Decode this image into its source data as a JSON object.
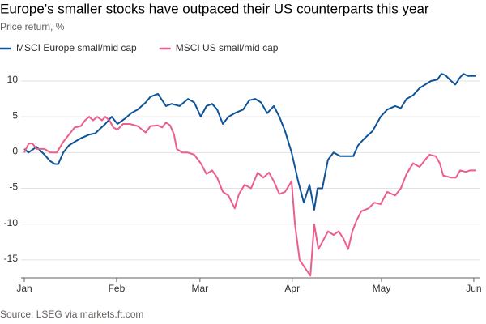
{
  "chart_data": {
    "type": "line",
    "title": "Europe's smaller stocks have outpaced their US counterparts this year",
    "subtitle": "Price return, %",
    "source": "Source: LSEG via markets.ft.com",
    "xlim": [
      0,
      152
    ],
    "xticks": [
      {
        "value": 0,
        "label": "Jan"
      },
      {
        "value": 31,
        "label": "Feb"
      },
      {
        "value": 59,
        "label": "Mar"
      },
      {
        "value": 90,
        "label": "Apr"
      },
      {
        "value": 120,
        "label": "May"
      },
      {
        "value": 151,
        "label": "Jun"
      }
    ],
    "ylim": [
      -17.5,
      11.5
    ],
    "yticks": [
      -15,
      -10,
      -5,
      0,
      5,
      10
    ],
    "grid": true,
    "legend": "top-left",
    "series": [
      {
        "name": "MSCI Europe small/mid cap",
        "color": "#0f5499",
        "x": [
          0,
          1.4,
          4.1,
          6.8,
          8.7,
          10.3,
          11.4,
          13.1,
          15,
          16.9,
          19,
          21.8,
          23.9,
          25.9,
          27.2,
          29.4,
          31.3,
          34,
          35.9,
          38.1,
          40.8,
          42.4,
          44.9,
          47.6,
          49.5,
          52.2,
          55,
          57.1,
          59.3,
          61.2,
          63.1,
          64.8,
          66.7,
          68.6,
          70.7,
          73.5,
          75.6,
          77.6,
          79.5,
          81.6,
          83.8,
          85.7,
          87.6,
          89.8,
          92,
          93.9,
          95.8,
          97.4,
          98.5,
          100.1,
          102,
          103.9,
          106.1,
          108.8,
          110.5,
          112.1,
          114.3,
          117,
          119.7,
          121.9,
          124.6,
          126.5,
          128.4,
          130.6,
          132.8,
          134.7,
          136.6,
          138.8,
          140.1,
          141.5,
          143.4,
          144.8,
          146.4,
          147.5,
          149.1,
          151.8
        ],
        "values": [
          0.5,
          0,
          0.8,
          -0.3,
          -1.2,
          -1.6,
          -1.6,
          0,
          1,
          1.5,
          2,
          2.5,
          2.7,
          3.5,
          4,
          5,
          4,
          4.8,
          5.5,
          6,
          7,
          7.8,
          8.2,
          6.5,
          6.8,
          6.5,
          7.5,
          7,
          5,
          6.5,
          6.8,
          6,
          4,
          5,
          5.5,
          6,
          7.3,
          7.5,
          7,
          5.5,
          6.5,
          5,
          3,
          0,
          -4,
          -7,
          -4.5,
          -8,
          -5,
          -5,
          -1,
          0,
          -0.5,
          -0.5,
          -0.5,
          1,
          2,
          3,
          5,
          6,
          6.5,
          6.2,
          7.5,
          8,
          9,
          9.5,
          10,
          10.2,
          11,
          10.8,
          10,
          9.5,
          10.5,
          11,
          10.7,
          10.7
        ]
      },
      {
        "name": "MSCI US small/mid cap",
        "color": "#eb5e8d",
        "x": [
          0,
          1.4,
          2.7,
          4.1,
          6.8,
          8.7,
          10.9,
          13.1,
          15,
          16.9,
          19,
          20.4,
          21.8,
          23.1,
          24.5,
          26.1,
          27.2,
          28.6,
          29.9,
          31.3,
          33.2,
          35.4,
          38.1,
          40.8,
          42.4,
          44.9,
          46.3,
          47.6,
          49,
          50.3,
          51.2,
          53.1,
          55,
          57.1,
          59.3,
          61.2,
          63.1,
          64.8,
          66.7,
          68.6,
          70.7,
          72.1,
          74,
          76.2,
          78.4,
          80.3,
          82.2,
          83.8,
          85.7,
          87.6,
          89.8,
          90.9,
          92.5,
          94.1,
          96.1,
          97.4,
          98.8,
          100.1,
          102,
          103.9,
          105.6,
          107.2,
          108.8,
          110.2,
          111.6,
          113.2,
          115.6,
          117.6,
          119.7,
          121.9,
          124.6,
          126.5,
          128.4,
          130.6,
          132.8,
          134.7,
          136.1,
          138.2,
          139.6,
          140.7,
          143.4,
          145,
          146.4,
          148.3,
          149.7,
          151.8
        ],
        "values": [
          0,
          1.2,
          1.3,
          0.5,
          0.5,
          0,
          0,
          1.5,
          2.5,
          3.5,
          3.7,
          4.5,
          5,
          4.5,
          5,
          4.5,
          5,
          4.5,
          3.5,
          3.2,
          4,
          4,
          3.7,
          2.8,
          3.7,
          3.8,
          3.5,
          4.2,
          3.8,
          2.5,
          0.5,
          0,
          0,
          -0.3,
          -1.5,
          -3,
          -2.5,
          -3.5,
          -5.5,
          -6,
          -7.8,
          -5.8,
          -4.5,
          -5,
          -2.8,
          -3.5,
          -2.8,
          -4,
          -5.8,
          -5.5,
          -4,
          -10,
          -15,
          -16,
          -17.2,
          -10,
          -13.5,
          -12.5,
          -11,
          -11.5,
          -11,
          -12,
          -13.5,
          -11,
          -9.5,
          -8.2,
          -7.8,
          -7,
          -7.2,
          -5.5,
          -6,
          -5,
          -3,
          -1.5,
          -2,
          -1,
          -0.3,
          -0.5,
          -1.5,
          -3.2,
          -3.5,
          -3.5,
          -2.5,
          -2.7,
          -2.5,
          -2.5
        ]
      }
    ]
  }
}
